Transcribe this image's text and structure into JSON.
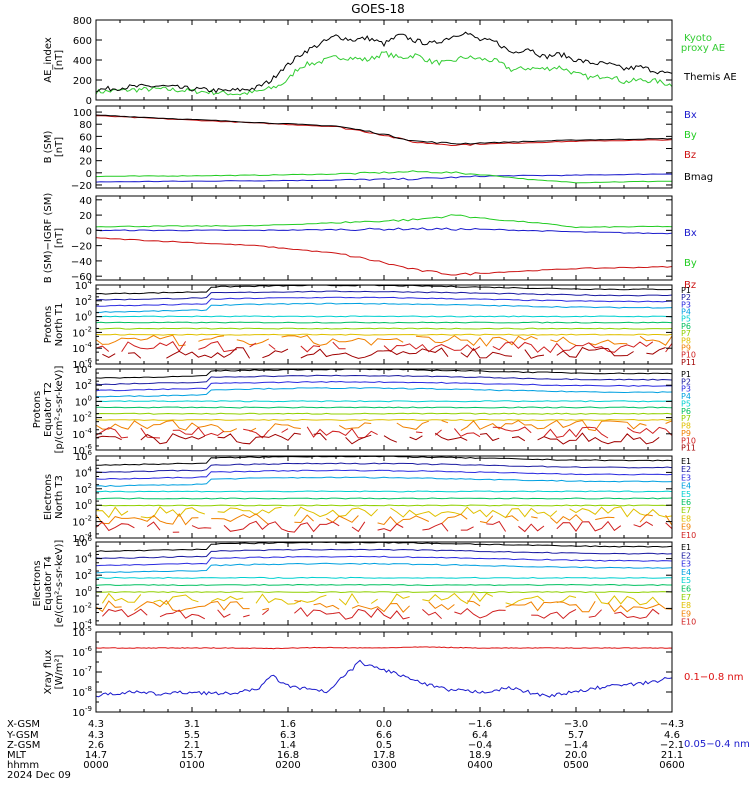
{
  "title": "GOES-18",
  "colors": {
    "kyoto": "#33cc33",
    "themis": "#000000",
    "bx": "#1a1acc",
    "by": "#22cc22",
    "bz": "#cc1111",
    "bmag": "#000000",
    "xray_long": "#dd1111",
    "xray_short": "#1a1acc"
  },
  "chart_data": [
    {
      "type": "line",
      "ylabel": "AE_index [nT]",
      "ylim": [
        0,
        800
      ],
      "yticks": [
        "0",
        "200",
        "400",
        "600",
        "800"
      ],
      "series": [
        {
          "name": "Kyoto proxy AE",
          "color": "kyoto",
          "x": [
            0,
            20,
            40,
            60,
            80,
            90,
            100,
            110,
            115,
            120,
            125,
            130,
            140,
            150,
            160,
            170,
            180,
            190,
            200,
            210,
            220,
            230,
            240,
            250,
            260,
            270,
            280,
            290,
            300,
            310,
            320,
            330,
            340,
            350,
            360,
            370,
            380,
            390,
            400,
            410,
            420,
            440,
            460,
            480,
            500,
            520,
            540,
            560
          ],
          "y": [
            80,
            100,
            110,
            90,
            70,
            60,
            80,
            120,
            150,
            200,
            300,
            350,
            380,
            430,
            420,
            400,
            470,
            420,
            450,
            380,
            370,
            430,
            410,
            390,
            300,
            320,
            310,
            330,
            260,
            220,
            250,
            180,
            200,
            190,
            150,
            130,
            160,
            150,
            120,
            110,
            80,
            60,
            50,
            40,
            30,
            60,
            50,
            20
          ]
        },
        {
          "name": "Themis AE",
          "color": "themis",
          "x": [
            0,
            20,
            40,
            60,
            80,
            90,
            100,
            110,
            115,
            120,
            125,
            130,
            140,
            150,
            160,
            170,
            180,
            190,
            200,
            210,
            220,
            230,
            240,
            250,
            260,
            270,
            280,
            290,
            300,
            310,
            320,
            330,
            340,
            350,
            360,
            370,
            380,
            390,
            400,
            410,
            420,
            440,
            460,
            480,
            500,
            520,
            540,
            560
          ],
          "y": [
            100,
            130,
            140,
            110,
            90,
            100,
            120,
            200,
            300,
            350,
            420,
            480,
            560,
            640,
            600,
            620,
            560,
            650,
            590,
            560,
            620,
            680,
            600,
            580,
            470,
            520,
            430,
            460,
            400,
            370,
            360,
            310,
            330,
            290,
            250,
            220,
            240,
            200,
            180,
            160,
            130,
            110,
            80,
            70,
            40,
            80,
            60,
            40
          ]
        }
      ]
    },
    {
      "type": "line",
      "ylabel": "B (SM) [nT]",
      "ylim": [
        -25,
        110
      ],
      "yticks": [
        "−20",
        "0",
        "20",
        "40",
        "60",
        "80",
        "100"
      ],
      "series": [
        {
          "name": "Bx",
          "color": "bx",
          "x": [
            0,
            50,
            100,
            150,
            200,
            250,
            300,
            350,
            400,
            450,
            500,
            560
          ],
          "y": [
            -15,
            -14,
            -13,
            -12,
            -10,
            -5,
            -4,
            -2,
            0,
            2,
            5,
            6
          ]
        },
        {
          "name": "By",
          "color": "by",
          "x": [
            0,
            50,
            100,
            150,
            200,
            225,
            250,
            275,
            300,
            325,
            350,
            400,
            450,
            500,
            560
          ],
          "y": [
            -6,
            -5,
            -4,
            -2,
            2,
            0,
            -5,
            -12,
            -16,
            -15,
            -14,
            -13,
            -12,
            -11,
            -10
          ]
        },
        {
          "name": "Bz",
          "color": "bz",
          "x": [
            0,
            50,
            100,
            150,
            175,
            200,
            225,
            250,
            300,
            350,
            400,
            450,
            500,
            560
          ],
          "y": [
            94,
            88,
            82,
            76,
            65,
            50,
            46,
            48,
            52,
            54,
            55,
            55,
            56,
            55
          ]
        },
        {
          "name": "Bmag",
          "color": "bmag",
          "x": [
            0,
            50,
            100,
            150,
            175,
            200,
            225,
            250,
            300,
            350,
            400,
            450,
            500,
            560
          ],
          "y": [
            95,
            89,
            83,
            77,
            66,
            52,
            48,
            50,
            54,
            56,
            57,
            57,
            58,
            57
          ]
        }
      ]
    },
    {
      "type": "line",
      "ylabel": "B (SM)−IGRF (SM) [nT]",
      "ylim": [
        -65,
        45
      ],
      "yticks": [
        "−60",
        "−40",
        "−20",
        "0",
        "20",
        "40"
      ],
      "series": [
        {
          "name": "Bx",
          "color": "bx",
          "x": [
            0,
            100,
            200,
            250,
            300,
            350,
            400,
            450,
            500,
            560
          ],
          "y": [
            0,
            0,
            2,
            1,
            -2,
            -4,
            -3,
            -2,
            -3,
            -2
          ]
        },
        {
          "name": "By",
          "color": "by",
          "x": [
            0,
            100,
            150,
            200,
            225,
            250,
            275,
            300,
            350,
            400,
            450,
            500,
            560
          ],
          "y": [
            5,
            6,
            10,
            14,
            20,
            14,
            10,
            4,
            5,
            5,
            4,
            5,
            4
          ]
        },
        {
          "name": "Bz",
          "color": "bz",
          "x": [
            0,
            50,
            100,
            150,
            175,
            200,
            225,
            250,
            300,
            350,
            400,
            450,
            500,
            560
          ],
          "y": [
            -10,
            -15,
            -20,
            -30,
            -40,
            -52,
            -58,
            -55,
            -50,
            -48,
            -46,
            -47,
            -46,
            -45
          ]
        }
      ]
    },
    {
      "type": "line",
      "ylabel": "Protons North T1",
      "log": true,
      "ylim_exp": [
        -6,
        4
      ],
      "ytick_exps": [
        -6,
        -4,
        -2,
        0,
        2,
        4
      ],
      "legend": [
        "P1",
        "P2",
        "P3",
        "P4",
        "P5",
        "P6",
        "P7",
        "P8",
        "P9",
        "P10",
        "P11"
      ]
    },
    {
      "type": "line",
      "ylabel": "Protons Equator T2 [p/(cm²-s-sr-keV)]",
      "log": true,
      "ylim_exp": [
        -6,
        4
      ],
      "ytick_exps": [
        -6,
        -4,
        -2,
        0,
        2,
        4
      ],
      "legend": [
        "P1",
        "P2",
        "P3",
        "P4",
        "P5",
        "P6",
        "P7",
        "P8",
        "P9",
        "P10",
        "P11"
      ]
    },
    {
      "type": "line",
      "ylabel": "Electrons North T3",
      "log": true,
      "ylim_exp": [
        -4,
        6
      ],
      "ytick_exps": [
        -4,
        -2,
        0,
        2,
        4,
        6
      ],
      "legend": [
        "E1",
        "E2",
        "E3",
        "E4",
        "E5",
        "E6",
        "E7",
        "E8",
        "E9",
        "E10"
      ]
    },
    {
      "type": "line",
      "ylabel": "Electrons Equator T4 [e/(cm²-s-sr-keV)]",
      "log": true,
      "ylim_exp": [
        -4,
        6
      ],
      "ytick_exps": [
        -4,
        -2,
        0,
        2,
        4,
        6
      ],
      "legend": [
        "E1",
        "E2",
        "E3",
        "E4",
        "E5",
        "E6",
        "E7",
        "E8",
        "E9",
        "E10"
      ]
    },
    {
      "type": "line",
      "ylabel": "Xray flux [W/m²]",
      "log": true,
      "ylim_exp": [
        -9,
        -5
      ],
      "ytick_exps": [
        -9,
        -8,
        -7,
        -6,
        -5
      ],
      "series": [
        {
          "name": "0.1−0.8 nm",
          "color": "xray_long",
          "x": [
            0,
            40,
            80,
            110,
            140,
            175,
            205,
            240,
            280,
            320,
            360,
            400,
            440,
            480,
            520,
            560
          ],
          "y": [
            -5.8,
            -5.8,
            -5.8,
            -5.82,
            -5.78,
            -5.8,
            -5.75,
            -5.8,
            -5.8,
            -5.8,
            -5.8,
            -5.82,
            -5.8,
            -5.8,
            -5.78,
            -5.8
          ]
        },
        {
          "name": "0.05−0.4 nm",
          "color": "xray_short",
          "x": [
            0,
            20,
            40,
            60,
            80,
            100,
            110,
            120,
            135,
            145,
            155,
            165,
            175,
            185,
            195,
            205,
            220,
            240,
            260,
            280,
            300,
            320,
            340,
            360,
            380,
            400,
            420,
            440,
            460,
            480,
            500,
            520,
            540,
            560
          ],
          "y": [
            -8.2,
            -8.0,
            -8.1,
            -8.0,
            -8.1,
            -7.9,
            -7.2,
            -7.7,
            -7.9,
            -8.0,
            -7.2,
            -6.5,
            -6.8,
            -7.0,
            -7.3,
            -7.6,
            -7.9,
            -8.0,
            -7.8,
            -8.2,
            -8.0,
            -7.7,
            -7.6,
            -7.3,
            -7.9,
            -8.0,
            -7.5,
            -7.2,
            -8.0,
            -8.3,
            -8.5,
            -8.2,
            -8.3,
            -7.2
          ]
        }
      ]
    }
  ],
  "x_axis": {
    "rows": [
      "X-GSM",
      "Y-GSM",
      "Z-GSM",
      "MLT",
      "hhmm"
    ],
    "columns": [
      [
        "4.3",
        "4.3",
        "2.6",
        "14.7",
        "0000"
      ],
      [
        "3.1",
        "5.5",
        "2.1",
        "15.7",
        "0100"
      ],
      [
        "1.6",
        "6.3",
        "1.4",
        "16.8",
        "0200"
      ],
      [
        "0.0",
        "6.6",
        "0.5",
        "17.8",
        "0300"
      ],
      [
        "−1.6",
        "6.4",
        "−0.4",
        "18.9",
        "0400"
      ],
      [
        "−3.0",
        "5.7",
        "−1.4",
        "20.0",
        "0500"
      ],
      [
        "−4.3",
        "4.6",
        "−2.1",
        "21.1",
        "0600"
      ]
    ],
    "date": "2024 Dec 09"
  }
}
